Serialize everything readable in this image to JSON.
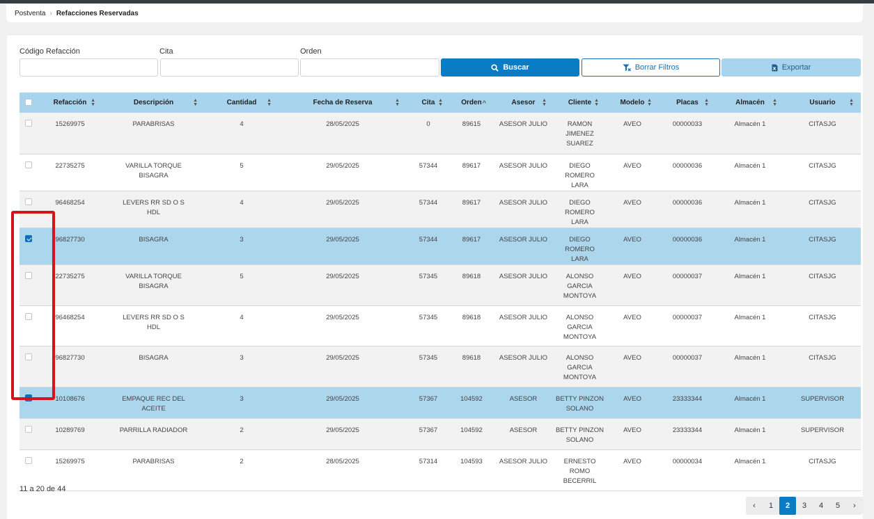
{
  "breadcrumb": {
    "root": "Postventa",
    "current": "Refacciones Reservadas"
  },
  "filters": {
    "codigo_label": "Código Refacción",
    "cita_label": "Cita",
    "orden_label": "Orden",
    "codigo_value": "",
    "cita_value": "",
    "orden_value": ""
  },
  "buttons": {
    "buscar": "Buscar",
    "borrar": "Borrar Filtros",
    "exportar": "Exportar"
  },
  "colors": {
    "primary": "#0a7cc4",
    "header_bg": "#a8d4ee",
    "selected_row": "#acd6ec",
    "highlight": "#d0161b"
  },
  "columns": [
    "Refacción",
    "Descripción",
    "Cantidad",
    "Fecha de Reserva",
    "Cita",
    "Orden",
    "Asesor",
    "Cliente",
    "Modelo",
    "Placas",
    "Almacén",
    "Usuario"
  ],
  "rows": [
    {
      "checked": false,
      "refaccion": "15269975",
      "descripcion": "PARABRISAS",
      "cantidad": "4",
      "fecha": "28/05/2025",
      "cita": "0",
      "orden": "89615",
      "asesor": "ASESOR JULIO",
      "cliente": "RAMON JIMENEZ SUAREZ",
      "modelo": "AVEO",
      "placas": "00000033",
      "almacen": "Almacén 1",
      "usuario": "CITASJG"
    },
    {
      "checked": false,
      "refaccion": "22735275",
      "descripcion": "VARILLA TORQUE BISAGRA",
      "cantidad": "5",
      "fecha": "29/05/2025",
      "cita": "57344",
      "orden": "89617",
      "asesor": "ASESOR JULIO",
      "cliente": "DIEGO ROMERO LARA",
      "modelo": "AVEO",
      "placas": "00000036",
      "almacen": "Almacén 1",
      "usuario": "CITASJG"
    },
    {
      "checked": false,
      "refaccion": "96468254",
      "descripcion": "LEVERS RR SD O S HDL",
      "cantidad": "4",
      "fecha": "29/05/2025",
      "cita": "57344",
      "orden": "89617",
      "asesor": "ASESOR JULIO",
      "cliente": "DIEGO ROMERO LARA",
      "modelo": "AVEO",
      "placas": "00000036",
      "almacen": "Almacén 1",
      "usuario": "CITASJG"
    },
    {
      "checked": true,
      "refaccion": "96827730",
      "descripcion": "BISAGRA",
      "cantidad": "3",
      "fecha": "29/05/2025",
      "cita": "57344",
      "orden": "89617",
      "asesor": "ASESOR JULIO",
      "cliente": "DIEGO ROMERO LARA",
      "modelo": "AVEO",
      "placas": "00000036",
      "almacen": "Almacén 1",
      "usuario": "CITASJG"
    },
    {
      "checked": false,
      "refaccion": "22735275",
      "descripcion": "VARILLA TORQUE BISAGRA",
      "cantidad": "5",
      "fecha": "29/05/2025",
      "cita": "57345",
      "orden": "89618",
      "asesor": "ASESOR JULIO",
      "cliente": "ALONSO GARCIA MONTOYA",
      "modelo": "AVEO",
      "placas": "00000037",
      "almacen": "Almacén 1",
      "usuario": "CITASJG"
    },
    {
      "checked": false,
      "refaccion": "96468254",
      "descripcion": "LEVERS RR SD O S HDL",
      "cantidad": "4",
      "fecha": "29/05/2025",
      "cita": "57345",
      "orden": "89618",
      "asesor": "ASESOR JULIO",
      "cliente": "ALONSO GARCIA MONTOYA",
      "modelo": "AVEO",
      "placas": "00000037",
      "almacen": "Almacén 1",
      "usuario": "CITASJG"
    },
    {
      "checked": false,
      "refaccion": "96827730",
      "descripcion": "BISAGRA",
      "cantidad": "3",
      "fecha": "29/05/2025",
      "cita": "57345",
      "orden": "89618",
      "asesor": "ASESOR JULIO",
      "cliente": "ALONSO GARCIA MONTOYA",
      "modelo": "AVEO",
      "placas": "00000037",
      "almacen": "Almacén 1",
      "usuario": "CITASJG"
    },
    {
      "checked": true,
      "refaccion": "10108676",
      "descripcion": "EMPAQUE REC DEL ACEITE",
      "cantidad": "3",
      "fecha": "29/05/2025",
      "cita": "57367",
      "orden": "104592",
      "asesor": "ASESOR",
      "cliente": "BETTY PINZON SOLANO",
      "modelo": "AVEO",
      "placas": "23333344",
      "almacen": "Almacén 1",
      "usuario": "SUPERVISOR"
    },
    {
      "checked": false,
      "refaccion": "10289769",
      "descripcion": "PARRILLA RADIADOR",
      "cantidad": "2",
      "fecha": "29/05/2025",
      "cita": "57367",
      "orden": "104592",
      "asesor": "ASESOR",
      "cliente": "BETTY PINZON SOLANO",
      "modelo": "AVEO",
      "placas": "23333344",
      "almacen": "Almacén 1",
      "usuario": "SUPERVISOR"
    },
    {
      "checked": false,
      "refaccion": "15269975",
      "descripcion": "PARABRISAS",
      "cantidad": "2",
      "fecha": "28/05/2025",
      "cita": "57314",
      "orden": "104593",
      "asesor": "ASESOR JULIO",
      "cliente": "ERNESTO ROMO BECERRIL",
      "modelo": "AVEO",
      "placas": "00000034",
      "almacen": "Almacén 1",
      "usuario": "CITASJG"
    }
  ],
  "pagination": {
    "summary": "11 a 20 de 44",
    "prev": "‹",
    "next": "›",
    "pages": [
      "1",
      "2",
      "3",
      "4",
      "5"
    ],
    "current": "2"
  }
}
